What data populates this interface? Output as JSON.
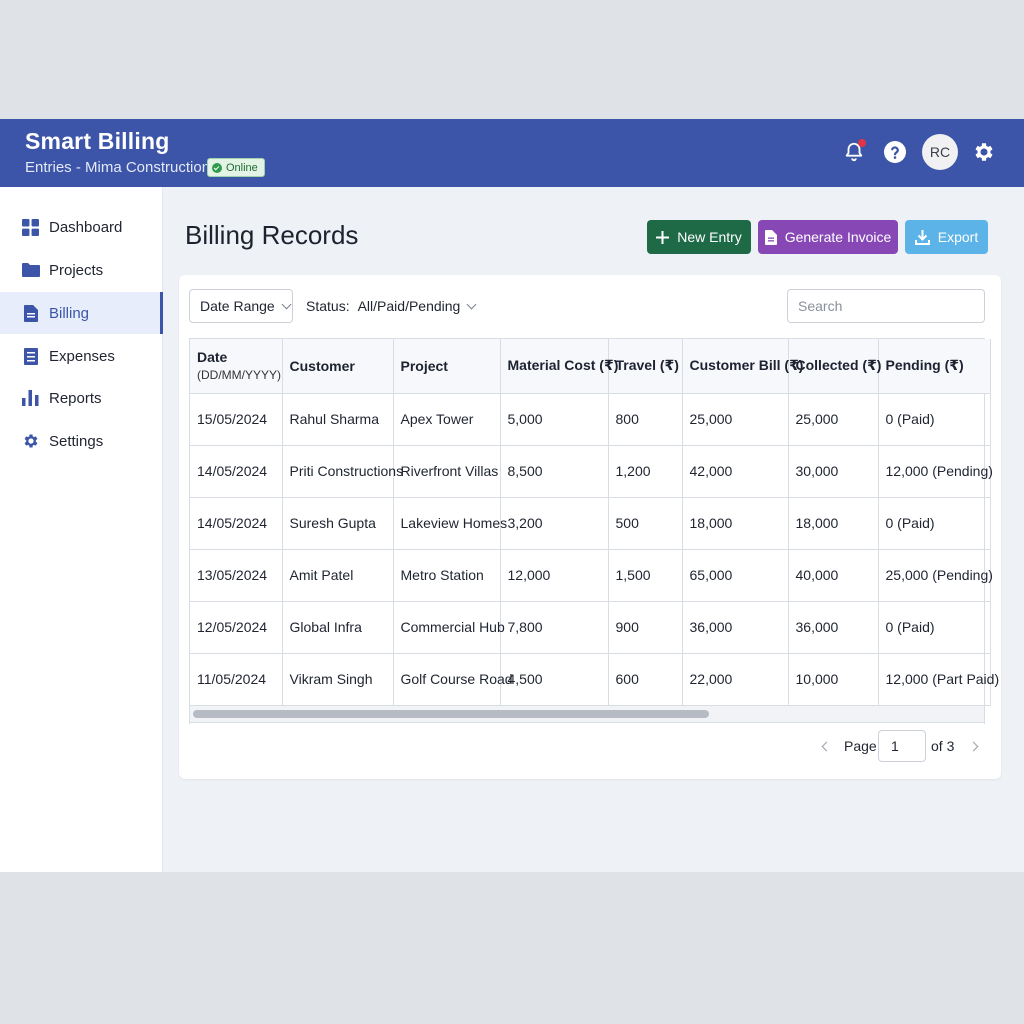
{
  "header": {
    "title": "Smart Billing",
    "subtitle": "Entries - Mima Construction",
    "status_badge": "Online",
    "avatar_initials": "RC",
    "accent_color": "#3c55a8"
  },
  "sidebar": {
    "items": [
      {
        "label": "Dashboard",
        "icon": "grid-icon"
      },
      {
        "label": "Projects",
        "icon": "folder-icon"
      },
      {
        "label": "Billing",
        "icon": "document-icon",
        "active": true
      },
      {
        "label": "Expenses",
        "icon": "list-icon"
      },
      {
        "label": "Reports",
        "icon": "bar-chart-icon"
      },
      {
        "label": "Settings",
        "icon": "gear-icon"
      }
    ]
  },
  "main": {
    "title": "Billing Records",
    "actions": {
      "new_entry": "New Entry",
      "generate_invoice": "Generate Invoice",
      "export": "Export"
    },
    "filters": {
      "date_range": "Date Range",
      "status_label": "Status:",
      "status_value": "All/Paid/Pending",
      "search_placeholder": "Search"
    },
    "table": {
      "columns": {
        "date": "Date",
        "date_format": "(DD/MM/YYYY)",
        "customer": "Customer",
        "project": "Project",
        "material_cost": "Material Cost (₹)",
        "travel": "Travel (₹)",
        "customer_bill": "Customer Bill (₹)",
        "collected": "Collected (₹)",
        "pending": "Pending (₹)"
      },
      "rows": [
        {
          "date": "15/05/2024",
          "customer": "Rahul Sharma",
          "project": "Apex Tower",
          "material": "5,000",
          "travel": "800",
          "bill": "25,000",
          "collected": "25,000",
          "pending": "0 (Paid)"
        },
        {
          "date": "14/05/2024",
          "customer": "Priti Constructions",
          "project": "Riverfront Villas",
          "material": "8,500",
          "travel": "1,200",
          "bill": "42,000",
          "collected": "30,000",
          "pending": "12,000 (Pending)"
        },
        {
          "date": "14/05/2024",
          "customer": "Suresh Gupta",
          "project": "Lakeview Homes",
          "material": "3,200",
          "travel": "500",
          "bill": "18,000",
          "collected": "18,000",
          "pending": "0 (Paid)"
        },
        {
          "date": "13/05/2024",
          "customer": "Amit Patel",
          "project": "Metro Station",
          "material": "12,000",
          "travel": "1,500",
          "bill": "65,000",
          "collected": "40,000",
          "pending": "25,000 (Pending)"
        },
        {
          "date": "12/05/2024",
          "customer": "Global Infra",
          "project": "Commercial Hub",
          "material": "7,800",
          "travel": "900",
          "bill": "36,000",
          "collected": "36,000",
          "pending": "0 (Paid)"
        },
        {
          "date": "11/05/2024",
          "customer": "Vikram Singh",
          "project": "Golf Course Road",
          "material": "4,500",
          "travel": "600",
          "bill": "22,000",
          "collected": "10,000",
          "pending": "12,000 (Part Paid)"
        }
      ]
    },
    "pagination": {
      "label": "Page",
      "current": "1",
      "total_label": "of 3"
    }
  }
}
